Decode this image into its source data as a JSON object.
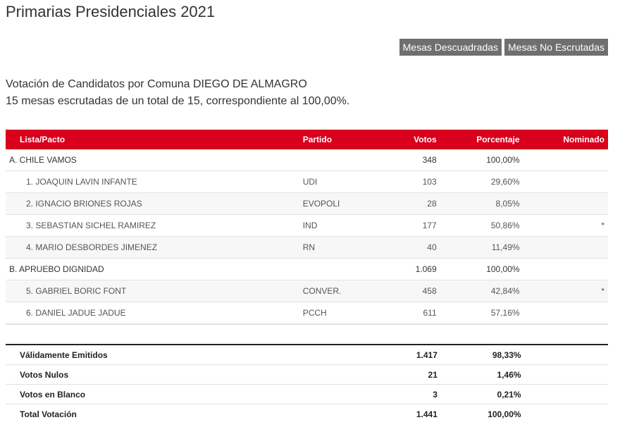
{
  "page": {
    "title": "Primarias Presidenciales 2021",
    "buttons": {
      "descuadradas": "Mesas Descuadradas",
      "no_escrutadas": "Mesas No Escrutadas"
    },
    "info_line1": "Votación de Candidatos por Comuna DIEGO DE ALMAGRO",
    "info_line2": "15 mesas escrutadas de un total de 15, correspondiente al 100,00%."
  },
  "table": {
    "headers": {
      "lista": "Lista/Pacto",
      "partido": "Partido",
      "votos": "Votos",
      "porcentaje": "Porcentaje",
      "nominado": "Nominado"
    },
    "rows": [
      {
        "lista": "A. CHILE VAMOS",
        "partido": "",
        "votos": "348",
        "porcentaje": "100,00%",
        "nominado": ""
      },
      {
        "lista": "1. JOAQUIN LAVIN INFANTE",
        "partido": "UDI",
        "votos": "103",
        "porcentaje": "29,60%",
        "nominado": ""
      },
      {
        "lista": "2. IGNACIO BRIONES ROJAS",
        "partido": "EVOPOLI",
        "votos": "28",
        "porcentaje": "8,05%",
        "nominado": ""
      },
      {
        "lista": "3. SEBASTIAN SICHEL RAMIREZ",
        "partido": "IND",
        "votos": "177",
        "porcentaje": "50,86%",
        "nominado": "*"
      },
      {
        "lista": "4. MARIO DESBORDES JIMENEZ",
        "partido": "RN",
        "votos": "40",
        "porcentaje": "11,49%",
        "nominado": ""
      },
      {
        "lista": "B. APRUEBO DIGNIDAD",
        "partido": "",
        "votos": "1.069",
        "porcentaje": "100,00%",
        "nominado": ""
      },
      {
        "lista": "5. GABRIEL BORIC FONT",
        "partido": "CONVER.",
        "votos": "458",
        "porcentaje": "42,84%",
        "nominado": "*"
      },
      {
        "lista": "6. DANIEL JADUE JADUE",
        "partido": "PCCH",
        "votos": "611",
        "porcentaje": "57,16%",
        "nominado": ""
      }
    ]
  },
  "totals": [
    {
      "label": "Válidamente Emitidos",
      "votos": "1.417",
      "porcentaje": "98,33%"
    },
    {
      "label": "Votos Nulos",
      "votos": "21",
      "porcentaje": "1,46%"
    },
    {
      "label": "Votos en Blanco",
      "votos": "3",
      "porcentaje": "0,21%"
    },
    {
      "label": "Total Votación",
      "votos": "1.441",
      "porcentaje": "100,00%"
    }
  ],
  "colors": {
    "header_red": "#d8001c",
    "button_gray": "#6f6f6f"
  }
}
